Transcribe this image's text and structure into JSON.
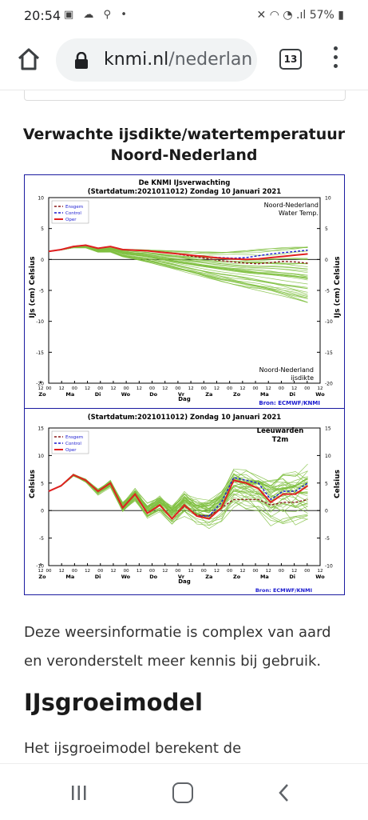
{
  "status": {
    "time": "20:54",
    "battery": "57%"
  },
  "browser": {
    "url_host": "knmi.nl",
    "url_path": "/nederland",
    "tab_count": "13"
  },
  "section": {
    "title_line1": "Verwachte ijsdikte/watertemperatuur",
    "title_line2": "Noord-Nederland"
  },
  "figure": {
    "header_line1": "De KNMI IJsverwachting",
    "header_line2": "(Startdatum:2021011012)  Zondag 10 Januari 2021",
    "source": "Bron: ECMWF/KNMI",
    "legend": [
      "Ensgem",
      "Control",
      "Oper"
    ],
    "colors": {
      "ensemble": "#7fbf3f",
      "ensgem": "#8b1a1a",
      "control": "#1a1ad0",
      "oper": "#e02020",
      "frame": "#1a1aa0"
    },
    "x_hours": [
      "12",
      "00",
      "12",
      "00",
      "12",
      "00",
      "12",
      "00",
      "12",
      "00",
      "12",
      "00",
      "12",
      "00",
      "12",
      "00",
      "12",
      "00",
      "12",
      "00",
      "12",
      "00",
      "12"
    ],
    "x_days": [
      "Zo",
      "Ma",
      "Di",
      "Wo",
      "Do",
      "Vr",
      "Za",
      "Zo",
      "Ma",
      "Di",
      "Wo"
    ],
    "x_label": "Dag"
  },
  "chart_data": [
    {
      "type": "line",
      "title": "De KNMI IJsverwachting",
      "subtitle": "",
      "ylabel": "IJs (cm)  Celsius",
      "ylabel_right": "IJs (cm)  Celsius",
      "ylim": [
        -20,
        10
      ],
      "yticks": [
        "10",
        "5",
        "0",
        "-5",
        "-10",
        "-15",
        "-20"
      ],
      "annotation_top": [
        "Noord-Nederland",
        "Water Temp."
      ],
      "annotation_bottom": [
        "Noord-Nederland",
        "ijsdikte"
      ],
      "x_steps": 22,
      "series": [
        {
          "name": "Oper",
          "values": [
            1.3,
            1.6,
            2.1,
            2.3,
            1.8,
            2.1,
            1.6,
            1.5,
            1.4,
            1.2,
            1.0,
            0.8,
            0.6,
            0.4,
            0.2,
            0.1,
            0.0,
            0.1,
            0.3,
            0.5,
            0.7,
            0.9
          ]
        },
        {
          "name": "Control",
          "values": [
            1.3,
            1.6,
            2.1,
            2.3,
            1.8,
            2.1,
            1.6,
            1.5,
            1.4,
            1.2,
            1.0,
            0.8,
            0.6,
            0.4,
            0.3,
            0.2,
            0.3,
            0.6,
            0.9,
            1.1,
            1.3,
            1.5
          ]
        },
        {
          "name": "Ensgem",
          "values": [
            1.3,
            1.6,
            2.1,
            2.3,
            1.8,
            2.1,
            1.6,
            1.5,
            1.4,
            1.2,
            1.0,
            0.7,
            0.4,
            0.1,
            -0.2,
            -0.4,
            -0.6,
            -0.7,
            -0.5,
            -0.3,
            -0.4,
            -0.6
          ]
        }
      ],
      "ensemble_spread": {
        "low_end": -7.5,
        "high_end": 2.5
      }
    },
    {
      "type": "line",
      "title": "",
      "subtitle": "(Startdatum:2021011012)  Zondag 10 Januari 2021",
      "ylabel": "Celsius",
      "ylabel_right": "Celsius",
      "ylim": [
        -10,
        15
      ],
      "yticks": [
        "15",
        "10",
        "5",
        "0",
        "-5",
        "-10"
      ],
      "annotation_top": [
        "Leeuwarden",
        "T2m"
      ],
      "x_steps": 22,
      "series": [
        {
          "name": "Oper",
          "values": [
            3.5,
            4.5,
            6.5,
            5.5,
            3.5,
            5.0,
            0.5,
            3.0,
            -0.5,
            1.0,
            -1.5,
            1.0,
            -1.0,
            -1.5,
            0.5,
            5.5,
            5.0,
            4.0,
            1.5,
            3.0,
            3.0,
            4.5
          ]
        },
        {
          "name": "Control",
          "values": [
            3.5,
            4.5,
            6.5,
            5.5,
            3.5,
            5.0,
            0.5,
            3.0,
            -0.5,
            1.0,
            -1.5,
            1.0,
            -1.0,
            -1.0,
            1.5,
            6.0,
            5.5,
            5.0,
            2.0,
            3.5,
            3.5,
            5.0
          ]
        },
        {
          "name": "Ensgem",
          "values": [
            3.5,
            4.5,
            6.5,
            5.5,
            3.5,
            5.0,
            0.5,
            3.0,
            -0.5,
            1.0,
            -1.5,
            0.8,
            -0.8,
            -1.0,
            0.5,
            2.0,
            2.0,
            2.0,
            1.0,
            1.5,
            1.5,
            2.0
          ]
        }
      ],
      "ensemble_spread": {
        "low_end": -5,
        "high_end": 9
      }
    }
  ],
  "article": {
    "paragraph1": "Deze weersinformatie is complex van aard en veronderstelt meer kennis bij gebruik.",
    "heading": "IJsgroeimodel",
    "paragraph2": "Het ijsgroeimodel berekent de"
  }
}
